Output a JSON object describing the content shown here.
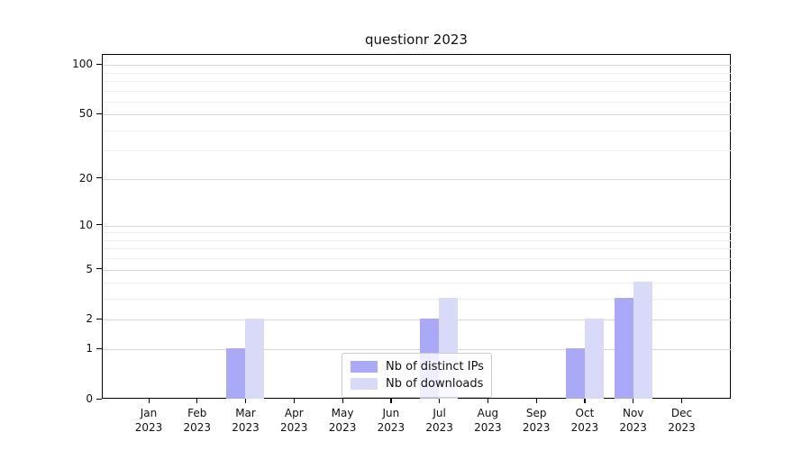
{
  "chart_data": {
    "type": "bar",
    "title": "questionr 2023",
    "x_tick_labels": [
      [
        "Jan",
        "2023"
      ],
      [
        "Feb",
        "2023"
      ],
      [
        "Mar",
        "2023"
      ],
      [
        "Apr",
        "2023"
      ],
      [
        "May",
        "2023"
      ],
      [
        "Jun",
        "2023"
      ],
      [
        "Jul",
        "2023"
      ],
      [
        "Aug",
        "2023"
      ],
      [
        "Sep",
        "2023"
      ],
      [
        "Oct",
        "2023"
      ],
      [
        "Nov",
        "2023"
      ],
      [
        "Dec",
        "2023"
      ]
    ],
    "series": [
      {
        "name": "Nb of distinct IPs",
        "color": "#a9a9f7",
        "values": [
          0,
          0,
          1,
          0,
          0,
          0,
          2,
          0,
          0,
          1,
          3,
          0
        ]
      },
      {
        "name": "Nb of downloads",
        "color": "#d9d9f8",
        "values": [
          0,
          0,
          2,
          0,
          0,
          0,
          3,
          0,
          0,
          2,
          4,
          0
        ]
      }
    ],
    "y_scale": "log1p",
    "ylim": [
      0,
      115
    ],
    "y_major_ticks": [
      0,
      1,
      2,
      5,
      10,
      20,
      50,
      100
    ],
    "y_minor_gridlines": [
      3,
      4,
      6,
      7,
      8,
      9,
      30,
      40,
      60,
      70,
      80,
      90
    ],
    "grid": true,
    "legend_position": "inside lower-center"
  },
  "colors": {
    "major_grid": "#d6d6d6",
    "minor_grid": "#efefef",
    "axis": "#000000",
    "background": "#ffffff"
  }
}
